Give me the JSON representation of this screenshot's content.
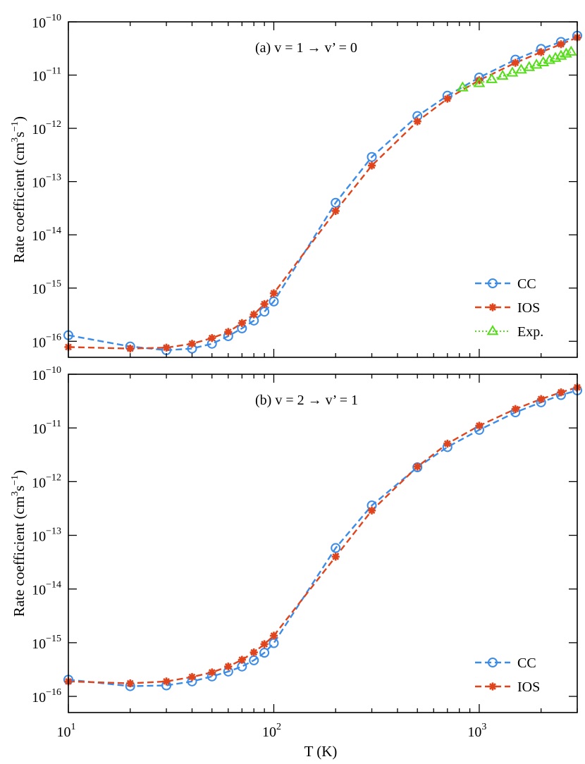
{
  "figure": {
    "xlabel_main": "T (K)",
    "xlabel": "T (K)",
    "x_ticks": [
      {
        "value": 10,
        "mant": "10",
        "exp": "1"
      },
      {
        "value": 100,
        "mant": "10",
        "exp": "2"
      },
      {
        "value": 1000,
        "mant": "10",
        "exp": "3"
      }
    ],
    "y_ticks": [
      {
        "value": 1e-16,
        "mant": "10",
        "exp": "−16"
      },
      {
        "value": 1e-15,
        "mant": "10",
        "exp": "−15"
      },
      {
        "value": 1e-14,
        "mant": "10",
        "exp": "−14"
      },
      {
        "value": 1e-13,
        "mant": "10",
        "exp": "−13"
      },
      {
        "value": 1e-12,
        "mant": "10",
        "exp": "−12"
      },
      {
        "value": 1e-11,
        "mant": "10",
        "exp": "−11"
      },
      {
        "value": 1e-10,
        "mant": "10",
        "exp": "−10"
      }
    ],
    "colors": {
      "CC": "#3b8be8",
      "IOS": "#e0441c",
      "Exp": "#55dd1a",
      "axis": "#000000"
    }
  },
  "chart_data": [
    {
      "type": "line",
      "panel": "a",
      "title": "(a) v = 1 →  v’ = 0",
      "xlabel": "T (K)",
      "ylabel": "Rate coefficient (cm³s⁻¹)",
      "ylabel_parts": {
        "pre": "Rate coefficient (cm",
        "exp1": "3",
        "mid": "s",
        "exp2": "−1",
        "post": ")"
      },
      "xscale": "log",
      "yscale": "log",
      "xlim": [
        10,
        3000
      ],
      "ylim": [
        5e-17,
        1e-10
      ],
      "legend_position": "bottom-right",
      "series": [
        {
          "name": "CC",
          "marker": "circle",
          "x": [
            10,
            20,
            30,
            40,
            50,
            60,
            70,
            80,
            90,
            100,
            200,
            300,
            500,
            700,
            1000,
            1500,
            2000,
            2500,
            3000
          ],
          "y": [
            1.3e-16,
            8e-17,
            6.8e-17,
            7.3e-17,
            9e-17,
            1.25e-16,
            1.75e-16,
            2.45e-16,
            3.6e-16,
            5.6e-16,
            4e-14,
            2.9e-13,
            1.7e-12,
            4.1e-12,
            9e-12,
            1.95e-11,
            3.1e-11,
            4.2e-11,
            5.5e-11
          ]
        },
        {
          "name": "IOS",
          "marker": "asterisk",
          "x": [
            10,
            20,
            30,
            40,
            50,
            60,
            70,
            80,
            90,
            100,
            200,
            300,
            500,
            700,
            1000,
            1500,
            2000,
            2500,
            3000
          ],
          "y": [
            7.8e-17,
            7.3e-17,
            7.6e-17,
            9e-17,
            1.15e-16,
            1.5e-16,
            2.2e-16,
            3.2e-16,
            5e-16,
            8e-16,
            2.8e-14,
            2e-13,
            1.35e-12,
            3.6e-12,
            8e-12,
            1.7e-11,
            2.7e-11,
            3.8e-11,
            5.1e-11
          ]
        },
        {
          "name": "Exp.",
          "marker": "triangle",
          "x": [
            830,
            1000,
            1150,
            1300,
            1450,
            1600,
            1750,
            1900,
            2050,
            2200,
            2350,
            2500,
            2650,
            2800
          ],
          "y": [
            5.8e-12,
            7e-12,
            8.3e-12,
            9.6e-12,
            1.1e-11,
            1.25e-11,
            1.4e-11,
            1.55e-11,
            1.72e-11,
            1.9e-11,
            2.08e-11,
            2.28e-11,
            2.5e-11,
            2.72e-11
          ]
        }
      ]
    },
    {
      "type": "line",
      "panel": "b",
      "title": "(b) v = 2 → v’ = 1",
      "xlabel": "T (K)",
      "ylabel": "Rate coefficient (cm³s⁻¹)",
      "ylabel_parts": {
        "pre": "Rate coefficient (cm",
        "exp1": "3",
        "mid": "s",
        "exp2": "−1",
        "post": ")"
      },
      "xscale": "log",
      "yscale": "log",
      "xlim": [
        10,
        3000
      ],
      "ylim": [
        5e-17,
        1e-10
      ],
      "legend_position": "bottom-right",
      "series": [
        {
          "name": "CC",
          "marker": "circle",
          "x": [
            10,
            20,
            30,
            40,
            50,
            60,
            70,
            80,
            90,
            100,
            200,
            300,
            500,
            700,
            1000,
            1500,
            2000,
            2500,
            3000
          ],
          "y": [
            2.05e-16,
            1.55e-16,
            1.6e-16,
            1.9e-16,
            2.35e-16,
            2.9e-16,
            3.6e-16,
            4.7e-16,
            6.5e-16,
            9.8e-16,
            5.8e-14,
            3.6e-13,
            1.85e-12,
            4.4e-12,
            9.2e-12,
            1.95e-11,
            3e-11,
            4.1e-11,
            5e-11
          ]
        },
        {
          "name": "IOS",
          "marker": "asterisk",
          "x": [
            10,
            20,
            30,
            40,
            50,
            60,
            70,
            80,
            90,
            100,
            200,
            300,
            500,
            700,
            1000,
            1500,
            2000,
            2500,
            3000
          ],
          "y": [
            1.9e-16,
            1.75e-16,
            1.9e-16,
            2.3e-16,
            2.8e-16,
            3.6e-16,
            4.8e-16,
            6.6e-16,
            9.4e-16,
            1.35e-15,
            4e-14,
            2.9e-13,
            1.9e-12,
            5.1e-12,
            1.1e-11,
            2.25e-11,
            3.45e-11,
            4.6e-11,
            5.7e-11
          ]
        }
      ]
    }
  ]
}
